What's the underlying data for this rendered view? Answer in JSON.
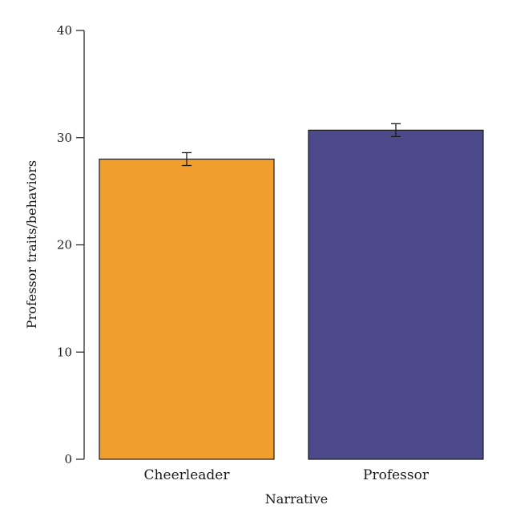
{
  "chart_data": {
    "type": "bar",
    "categories": [
      "Cheerleader",
      "Professor"
    ],
    "values": [
      28.0,
      30.7
    ],
    "errors": [
      0.6,
      0.6
    ],
    "colors": [
      "#f29e2e",
      "#4d4a8c"
    ],
    "title": "",
    "xlabel": "Narrative",
    "ylabel": "Professor traits/behaviors",
    "ylim": [
      0,
      40
    ],
    "yticks": [
      0,
      10,
      20,
      30,
      40
    ],
    "grid": false,
    "legend": "none"
  }
}
